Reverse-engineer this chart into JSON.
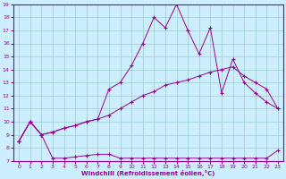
{
  "xlabel": "Windchill (Refroidissement éolien,°C)",
  "background_color": "#cceeff",
  "line_color": "#990099",
  "grid_color": "#99cccc",
  "xlim": [
    -0.5,
    23.5
  ],
  "ylim": [
    7,
    19
  ],
  "xticks": [
    0,
    1,
    2,
    3,
    4,
    5,
    6,
    7,
    8,
    9,
    10,
    11,
    12,
    13,
    14,
    15,
    16,
    17,
    18,
    19,
    20,
    21,
    22,
    23
  ],
  "yticks": [
    7,
    8,
    9,
    10,
    11,
    12,
    13,
    14,
    15,
    16,
    17,
    18,
    19
  ],
  "line1_x": [
    0,
    1,
    2,
    3,
    4,
    5,
    6,
    7,
    8,
    9,
    10,
    11,
    12,
    13,
    14,
    15,
    16,
    17,
    18,
    19,
    20,
    21,
    22,
    23
  ],
  "line1_y": [
    8.5,
    10.0,
    9.0,
    7.2,
    7.2,
    7.3,
    7.4,
    7.5,
    7.5,
    7.2,
    7.2,
    7.2,
    7.2,
    7.2,
    7.2,
    7.2,
    7.2,
    7.2,
    7.2,
    7.2,
    7.2,
    7.2,
    7.2,
    7.8
  ],
  "line2_x": [
    0,
    1,
    2,
    3,
    4,
    5,
    6,
    7,
    8,
    9,
    10,
    11,
    12,
    13,
    14,
    15,
    16,
    17,
    18,
    19,
    20,
    21,
    22,
    23
  ],
  "line2_y": [
    8.5,
    10.0,
    9.0,
    9.2,
    9.5,
    9.7,
    10.0,
    10.2,
    10.5,
    11.0,
    11.5,
    12.0,
    12.3,
    12.8,
    13.0,
    13.2,
    13.5,
    13.8,
    14.0,
    14.2,
    13.5,
    13.0,
    12.5,
    11.0
  ],
  "line3_x": [
    0,
    1,
    2,
    3,
    4,
    5,
    6,
    7,
    8,
    9,
    10,
    11,
    12,
    13,
    14,
    15,
    16,
    17,
    18,
    19,
    20,
    21,
    22,
    23
  ],
  "line3_y": [
    8.5,
    10.0,
    9.0,
    9.2,
    9.5,
    9.7,
    10.0,
    10.2,
    12.5,
    13.0,
    14.3,
    16.0,
    18.0,
    17.2,
    19.0,
    17.0,
    15.2,
    17.2,
    12.2,
    14.8,
    13.0,
    12.2,
    11.5,
    11.0
  ]
}
